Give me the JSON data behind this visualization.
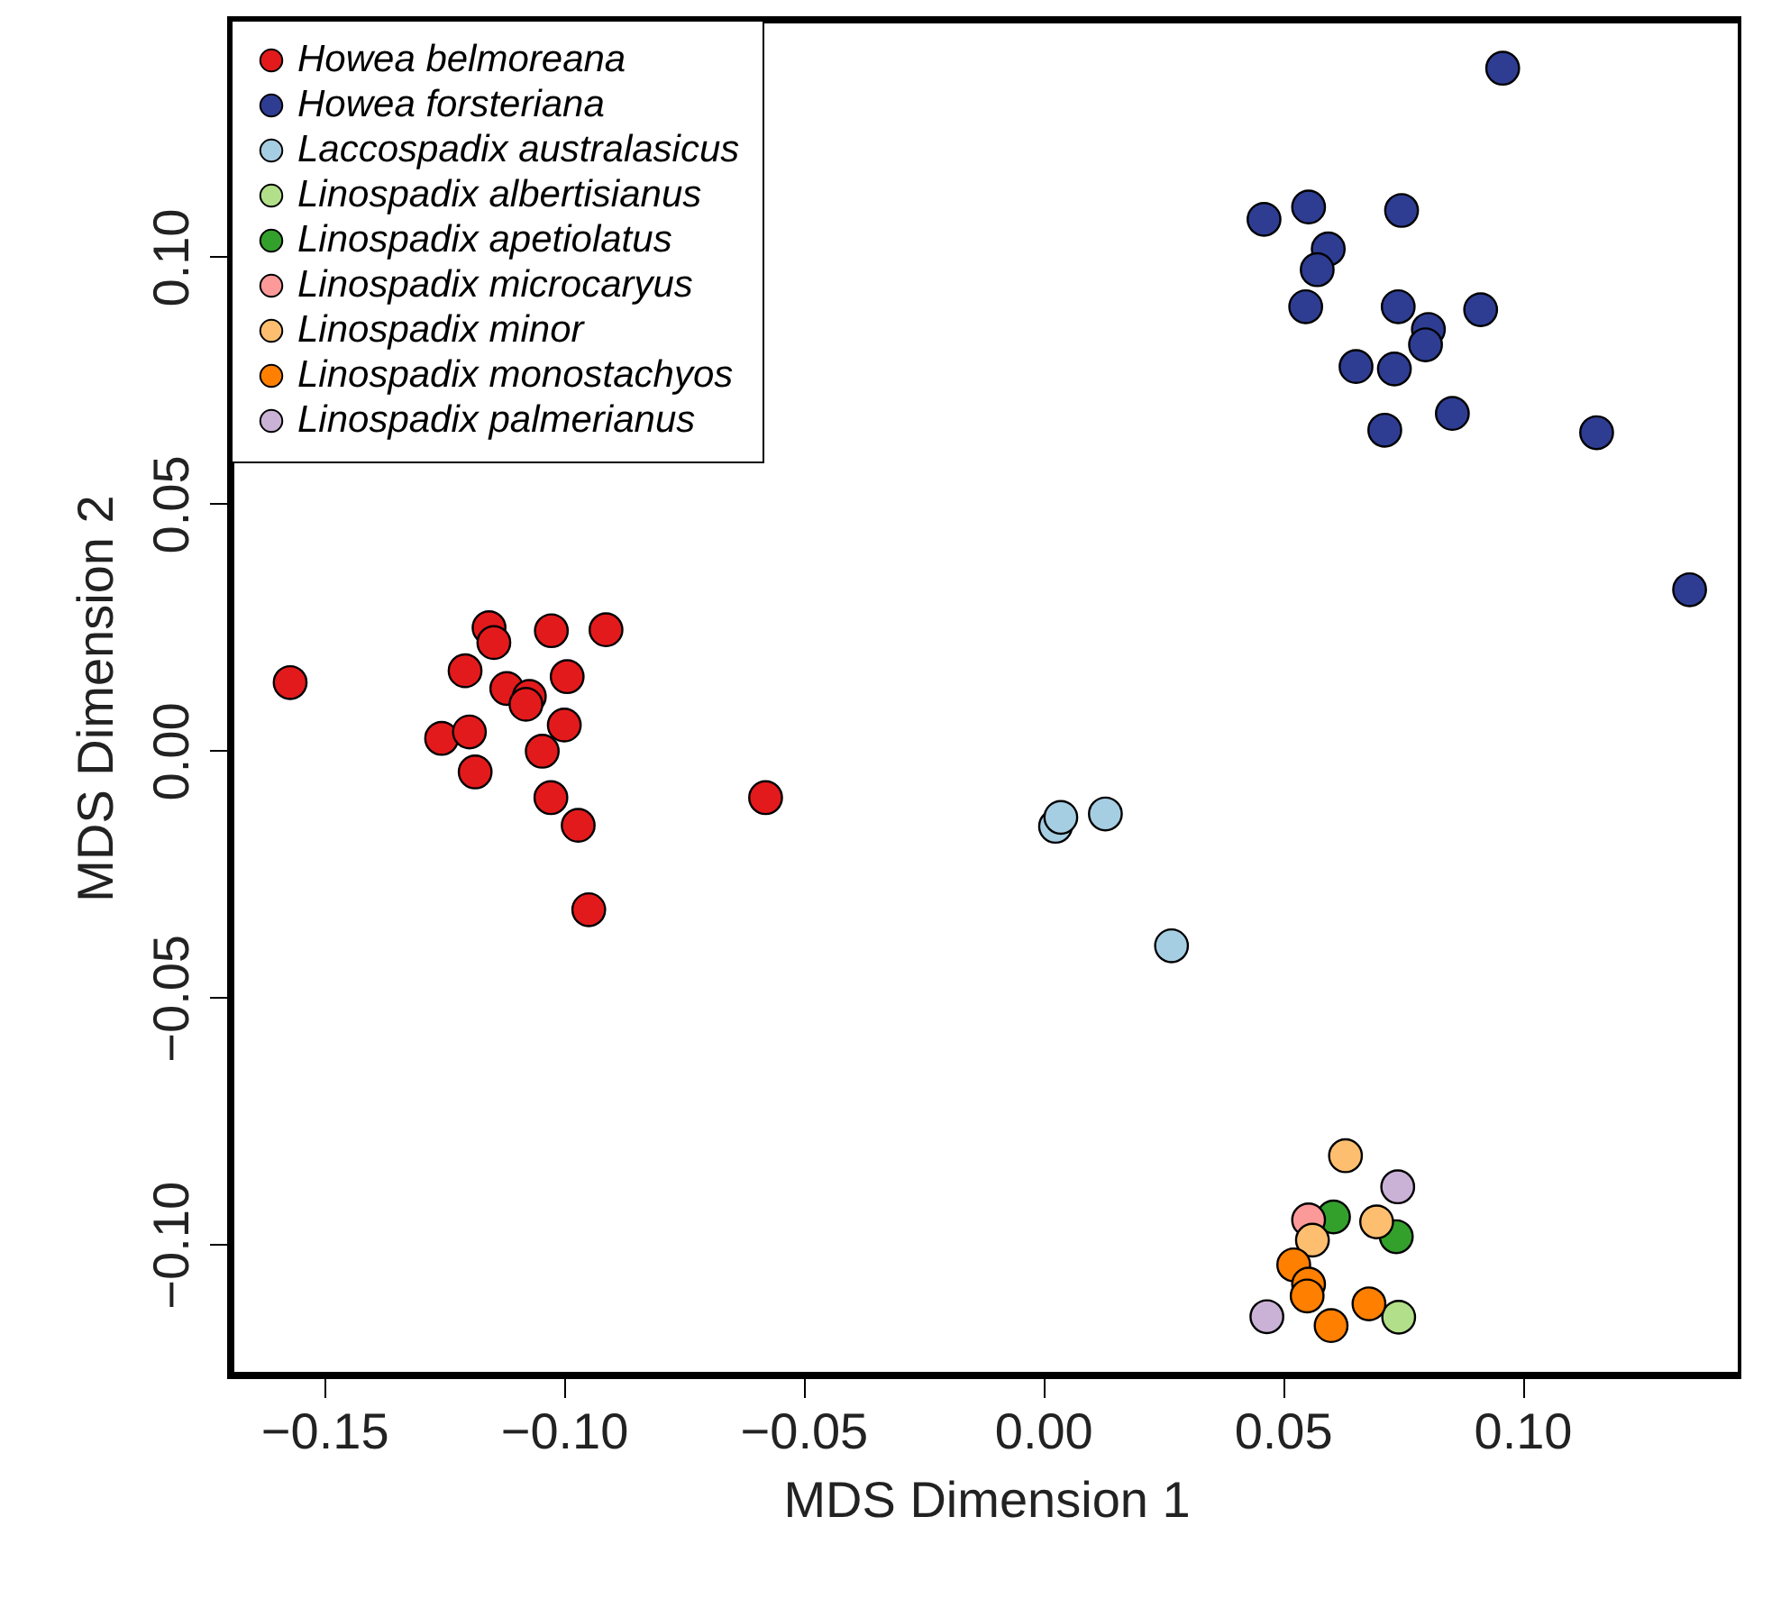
{
  "chart_data": {
    "type": "scatter",
    "xlabel": "MDS Dimension 1",
    "ylabel": "MDS Dimension 2",
    "xlim": [
      -0.1695,
      0.1457
    ],
    "ylim": [
      -0.1265,
      0.148
    ],
    "xticks": [
      {
        "value": -0.15,
        "label": "−0.15"
      },
      {
        "value": -0.1,
        "label": "−0.10"
      },
      {
        "value": -0.05,
        "label": "−0.05"
      },
      {
        "value": 0,
        "label": "0.00"
      },
      {
        "value": 0.05,
        "label": "0.05"
      },
      {
        "value": 0.1,
        "label": "0.10"
      }
    ],
    "yticks": [
      {
        "value": -0.1,
        "label": "−0.10"
      },
      {
        "value": -0.05,
        "label": "−0.05"
      },
      {
        "value": 0,
        "label": "0.00"
      },
      {
        "value": 0.05,
        "label": "0.05"
      },
      {
        "value": 0.1,
        "label": "0.10"
      }
    ],
    "grid": false,
    "legend": "top left",
    "marker": "circle",
    "series": [
      {
        "name": "Howea belmoreana",
        "color": "#e31a1c",
        "x": [
          -0.1571,
          -0.1156,
          -0.1146,
          -0.1026,
          -0.0912,
          -0.1206,
          -0.1119,
          -0.1072,
          -0.1079,
          -0.0993,
          -0.1255,
          -0.1197,
          -0.0999,
          -0.1045,
          -0.1185,
          -0.1027,
          -0.097,
          -0.0579,
          -0.0948
        ],
        "values": [
          0.0138,
          0.0249,
          0.0219,
          0.0243,
          0.0245,
          0.0162,
          0.0126,
          0.011,
          0.0094,
          0.015,
          0.0025,
          0.0038,
          0.0052,
          -0.0001,
          -0.0043,
          -0.0095,
          -0.0151,
          -0.0095,
          -0.0322
        ]
      },
      {
        "name": "Howea forsteriana",
        "color": "#2e3d92",
        "x": [
          0.0959,
          0.0461,
          0.0554,
          0.0748,
          0.0595,
          0.0572,
          0.0548,
          0.0741,
          0.0913,
          0.0804,
          0.0798,
          0.0653,
          0.0733,
          0.0854,
          0.0713,
          0.1155,
          0.1349
        ],
        "values": [
          0.1382,
          0.1076,
          0.1101,
          0.1094,
          0.1016,
          0.0974,
          0.0899,
          0.0899,
          0.0893,
          0.0853,
          0.0822,
          0.0778,
          0.0773,
          0.0683,
          0.0649,
          0.0644,
          0.0326
        ]
      },
      {
        "name": "Laccospadix australasicus",
        "color": "#a6cee3",
        "x": [
          0.0026,
          0.0037,
          0.013,
          0.0268
        ],
        "values": [
          -0.0153,
          -0.0135,
          -0.0128,
          -0.0395
        ]
      },
      {
        "name": "Linospadix albertisianus",
        "color": "#b2df8a",
        "x": [
          0.0742
        ],
        "values": [
          -0.1147
        ]
      },
      {
        "name": "Linospadix apetiolatus",
        "color": "#33a02c",
        "x": [
          0.0606,
          0.0737
        ],
        "values": [
          -0.0944,
          -0.0984
        ]
      },
      {
        "name": "Linospadix microcaryus",
        "color": "#fb9a99",
        "x": [
          0.0554
        ],
        "values": [
          -0.095
        ]
      },
      {
        "name": "Linospadix minor",
        "color": "#fdbf6f",
        "x": [
          0.0631,
          0.0696,
          0.0562
        ],
        "values": [
          -0.082,
          -0.0954,
          -0.0991
        ]
      },
      {
        "name": "Linospadix monostachyos",
        "color": "#ff7f00",
        "x": [
          0.0523,
          0.0554,
          0.0551,
          0.068,
          0.0601
        ],
        "values": [
          -0.1041,
          -0.108,
          -0.1104,
          -0.112,
          -0.1164
        ]
      },
      {
        "name": "Linospadix palmerianus",
        "color": "#cab2d6",
        "x": [
          0.074,
          0.0467
        ],
        "values": [
          -0.0883,
          -0.1146
        ]
      }
    ]
  }
}
